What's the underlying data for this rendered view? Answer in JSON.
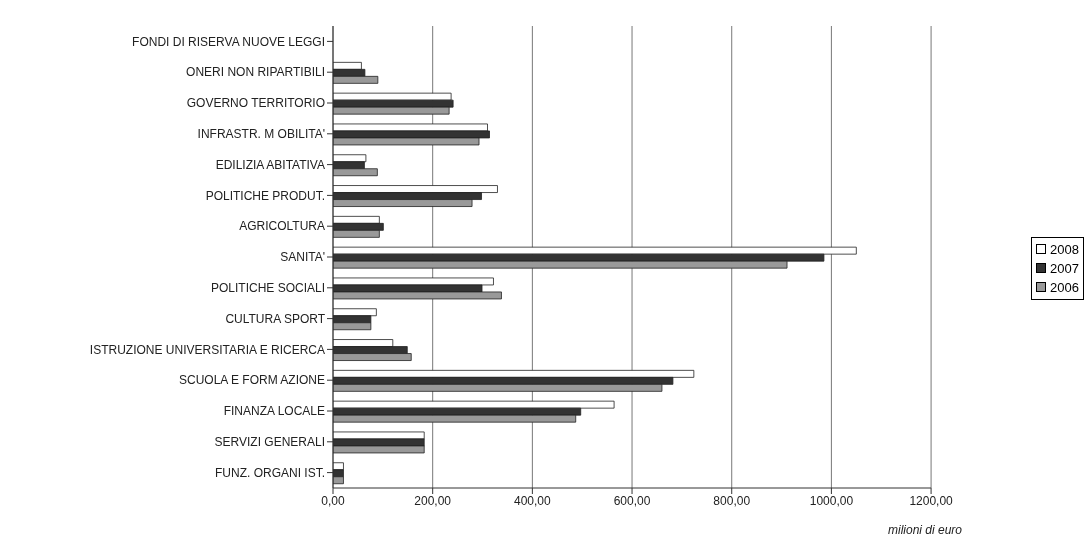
{
  "chart_data": {
    "type": "bar",
    "orientation": "horizontal",
    "xlabel": "milioni di euro",
    "categories": [
      "FONDI DI RISERVA NUOVE LEGGI",
      "ONERI NON RIPARTIBILI",
      "GOVERNO TERRITORIO",
      "INFRASTR. M OBILITA'",
      "EDILIZIA ABITATIVA",
      "POLITICHE PRODUT.",
      "AGRICOLTURA",
      "SANITA'",
      "POLITICHE SOCIALI",
      "CULTURA SPORT",
      "ISTRUZIONE UNIVERSITARIA E RICERCA",
      "SCUOLA E FORM AZIONE",
      "FINANZA LOCALE",
      "SERVIZI GENERALI",
      "FUNZ. ORGANI IST."
    ],
    "series": [
      {
        "name": "2008",
        "color": "#ffffff",
        "values": [
          null,
          57,
          237,
          310,
          66,
          330,
          93,
          1050,
          322,
          87,
          120,
          724,
          564,
          183,
          21
        ]
      },
      {
        "name": "2007",
        "color": "#333333",
        "values": [
          null,
          64,
          241,
          314,
          63,
          298,
          101,
          985,
          299,
          76,
          149,
          682,
          497,
          183,
          21
        ]
      },
      {
        "name": "2006",
        "color": "#999999",
        "values": [
          null,
          90,
          233,
          293,
          89,
          279,
          93,
          911,
          338,
          76,
          157,
          660,
          487,
          183,
          21
        ]
      }
    ],
    "xlim": [
      0,
      1200
    ],
    "xticks": [
      {
        "value": 0,
        "label": "0,00"
      },
      {
        "value": 200,
        "label": "200,00"
      },
      {
        "value": 400,
        "label": "400,00"
      },
      {
        "value": 600,
        "label": "600,00"
      },
      {
        "value": 800,
        "label": "800,00"
      },
      {
        "value": 1000,
        "label": "1000,00"
      },
      {
        "value": 1200,
        "label": "1200,00"
      }
    ],
    "grid": "x",
    "legend": "right"
  }
}
